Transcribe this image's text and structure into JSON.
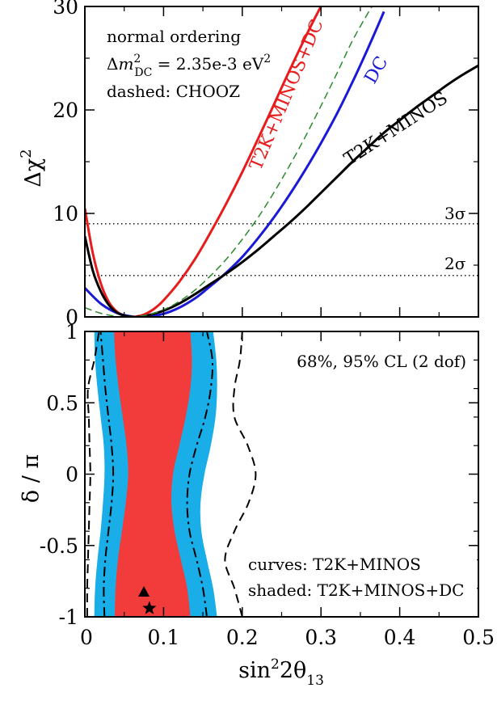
{
  "chart_data": [
    {
      "type": "line",
      "panel": "top",
      "ylabel": "Δχ²",
      "xlim": [
        0,
        0.5
      ],
      "ylim": [
        0,
        30
      ],
      "x_ticks": [
        0,
        0.1,
        0.2,
        0.3,
        0.4,
        0.5
      ],
      "y_ticks": [
        "0",
        "10",
        "20",
        "30"
      ],
      "notes": [
        "normal ordering",
        "Δm²_DC = 2.35e-3 eV²",
        "dashed: CHOOZ"
      ],
      "reference_lines": [
        {
          "label": "3σ",
          "y": 9
        },
        {
          "label": "2σ",
          "y": 4
        }
      ],
      "series": [
        {
          "name": "T2K+MINOS+DC",
          "color": "#e81c1c",
          "style": "solid",
          "x": [
            0,
            0.01,
            0.02,
            0.03,
            0.04,
            0.05,
            0.06,
            0.07,
            0.08,
            0.09,
            0.1,
            0.12,
            0.14,
            0.16,
            0.18,
            0.2,
            0.22,
            0.24,
            0.26,
            0.28,
            0.3,
            0.32,
            0.33
          ],
          "y": [
            10.5,
            6.2,
            3.3,
            1.5,
            0.55,
            0.12,
            0.0,
            0.1,
            0.4,
            0.9,
            1.6,
            3.4,
            5.6,
            8.2,
            11.0,
            14.0,
            17.2,
            20.5,
            23.8,
            27.0,
            30.0,
            32.5,
            33.5
          ]
        },
        {
          "name": "DC",
          "color": "#1a1ad6",
          "style": "solid",
          "x": [
            0,
            0.02,
            0.04,
            0.06,
            0.07,
            0.08,
            0.1,
            0.12,
            0.14,
            0.16,
            0.18,
            0.2,
            0.22,
            0.24,
            0.26,
            0.28,
            0.3,
            0.32,
            0.34,
            0.36,
            0.38
          ],
          "y": [
            2.8,
            1.3,
            0.4,
            0.03,
            0.0,
            0.03,
            0.3,
            0.9,
            1.8,
            3.0,
            4.3,
            5.8,
            7.6,
            9.6,
            11.8,
            14.2,
            16.8,
            19.6,
            22.7,
            26.0,
            29.5
          ]
        },
        {
          "name": "T2K+MINOS",
          "color": "#000000",
          "style": "solid",
          "x": [
            0,
            0.01,
            0.02,
            0.03,
            0.04,
            0.05,
            0.06,
            0.07,
            0.08,
            0.1,
            0.12,
            0.14,
            0.16,
            0.18,
            0.2,
            0.22,
            0.24,
            0.26,
            0.28,
            0.3,
            0.32,
            0.34,
            0.36,
            0.38,
            0.4,
            0.42,
            0.44,
            0.46,
            0.48,
            0.5
          ],
          "y": [
            7.8,
            4.5,
            2.5,
            1.2,
            0.45,
            0.12,
            0.01,
            0.02,
            0.15,
            0.6,
            1.3,
            2.2,
            3.2,
            4.2,
            5.3,
            6.5,
            7.8,
            9.1,
            10.5,
            12.0,
            13.5,
            15.0,
            16.4,
            17.8,
            19.0,
            20.2,
            21.3,
            22.4,
            23.4,
            24.3
          ]
        },
        {
          "name": "CHOOZ",
          "color": "#2a8a2a",
          "style": "dashed",
          "x": [
            0,
            0.02,
            0.04,
            0.05,
            0.06,
            0.08,
            0.1,
            0.12,
            0.14,
            0.16,
            0.18,
            0.2,
            0.22,
            0.24,
            0.26,
            0.28,
            0.3,
            0.32,
            0.34,
            0.36,
            0.37
          ],
          "y": [
            0.9,
            0.35,
            0.05,
            0.0,
            0.02,
            0.2,
            0.7,
            1.5,
            2.6,
            4.0,
            5.6,
            7.5,
            9.6,
            12.0,
            14.6,
            17.4,
            20.4,
            23.5,
            26.7,
            29.4,
            30.6
          ]
        }
      ],
      "curve_labels": [
        "T2K+MINOS+DC",
        "DC",
        "T2K+MINOS"
      ]
    },
    {
      "type": "area",
      "panel": "bottom",
      "xlabel": "sin²2θ₁₃",
      "ylabel": "δ / π",
      "xlim": [
        0,
        0.5
      ],
      "ylim": [
        -1,
        1
      ],
      "x_ticks": [
        "0",
        "0.1",
        "0.2",
        "0.3",
        "0.4",
        "0.5"
      ],
      "y_ticks": [
        "-1",
        "-0.5",
        "0",
        "0.5",
        "1"
      ],
      "notes": [
        "68%, 95% CL (2 dof)",
        "curves: T2K+MINOS",
        "shaded: T2K+MINOS+DC"
      ],
      "y_grid": [
        -1,
        -0.8,
        -0.6,
        -0.4,
        -0.2,
        0,
        0.2,
        0.4,
        0.6,
        0.8,
        1
      ],
      "regions": [
        {
          "name": "95% CL",
          "color": "#19aee8",
          "left": [
            0.012,
            0.013,
            0.016,
            0.02,
            0.023,
            0.025,
            0.024,
            0.02,
            0.016,
            0.013,
            0.012
          ],
          "right": [
            0.168,
            0.163,
            0.155,
            0.148,
            0.147,
            0.152,
            0.16,
            0.166,
            0.168,
            0.167,
            0.163
          ]
        },
        {
          "name": "68% CL",
          "color": "#f23c3c",
          "left": [
            0.038,
            0.039,
            0.042,
            0.047,
            0.052,
            0.055,
            0.053,
            0.048,
            0.043,
            0.039,
            0.037
          ],
          "right": [
            0.134,
            0.13,
            0.122,
            0.114,
            0.11,
            0.112,
            0.12,
            0.128,
            0.134,
            0.136,
            0.134
          ]
        }
      ],
      "curves": [
        {
          "name": "T2K+MINOS 68% CL",
          "style": "dashdot",
          "left": [
            0.025,
            0.024,
            0.026,
            0.03,
            0.034,
            0.036,
            0.034,
            0.03,
            0.026,
            0.023,
            0.02
          ],
          "right": [
            0.155,
            0.15,
            0.142,
            0.133,
            0.13,
            0.133,
            0.142,
            0.153,
            0.16,
            0.162,
            0.155
          ]
        },
        {
          "name": "T2K+MINOS 95% CL",
          "style": "dashed",
          "left": [
            0.003,
            0.003,
            0.004,
            0.005,
            0.006,
            0.007,
            0.006,
            0.005,
            0.004,
            0.012,
            0.018
          ],
          "right": [
            0.2,
            0.19,
            0.178,
            0.19,
            0.208,
            0.217,
            0.207,
            0.19,
            0.19,
            0.197,
            0.2
          ]
        }
      ],
      "markers": [
        {
          "shape": "triangle",
          "x": 0.075,
          "y": -0.83
        },
        {
          "shape": "star",
          "x": 0.082,
          "y": -0.94
        }
      ]
    }
  ]
}
